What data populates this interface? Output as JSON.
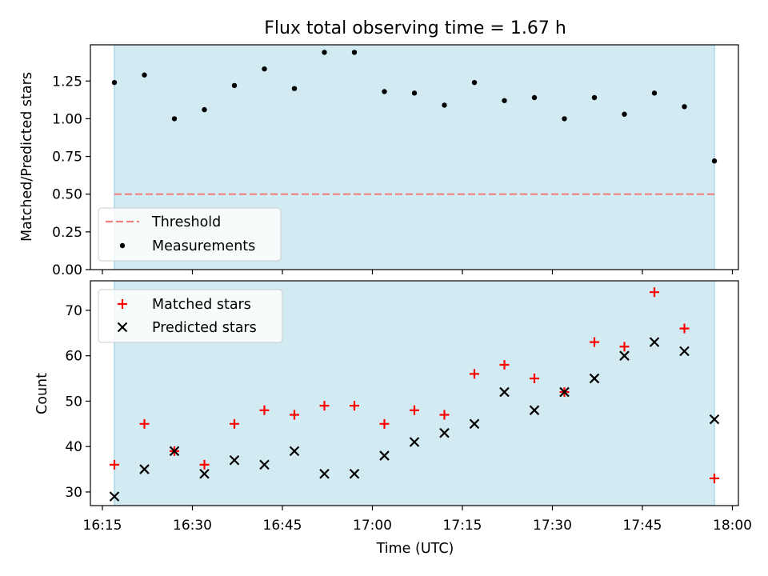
{
  "figure_title": "Flux total observing time = 1.67 h",
  "colors": {
    "span_fill": "#add8e6",
    "threshold": "#f08080",
    "measurement": "#000000",
    "matched": "#ff0000",
    "predicted": "#000000"
  },
  "chart_data": [
    {
      "type": "scatter",
      "panel": "top",
      "title": "",
      "ylabel": "Matched/Predicted stars",
      "xlabel": "",
      "xlim": [
        "16:13",
        "18:01"
      ],
      "ylim": [
        0,
        1.49
      ],
      "yticks": [
        0.0,
        0.25,
        0.5,
        0.75,
        1.0,
        1.25
      ],
      "ytick_labels": [
        "0.00",
        "0.25",
        "0.50",
        "0.75",
        "1.00",
        "1.25"
      ],
      "grid": false,
      "legend_position": "bottom-left",
      "observing_span": [
        "16:17",
        "17:57"
      ],
      "threshold": {
        "name": "Threshold",
        "value": 0.5
      },
      "series": [
        {
          "name": "Measurements",
          "x": [
            "16:17",
            "16:22",
            "16:27",
            "16:32",
            "16:37",
            "16:42",
            "16:47",
            "16:52",
            "16:57",
            "17:02",
            "17:07",
            "17:12",
            "17:17",
            "17:22",
            "17:27",
            "17:32",
            "17:37",
            "17:42",
            "17:47",
            "17:52",
            "17:57"
          ],
          "values": [
            1.24,
            1.29,
            1.0,
            1.06,
            1.22,
            1.33,
            1.2,
            1.44,
            1.44,
            1.18,
            1.17,
            1.09,
            1.24,
            1.12,
            1.14,
            1.0,
            1.14,
            1.03,
            1.17,
            1.08,
            0.72
          ]
        }
      ]
    },
    {
      "type": "scatter",
      "panel": "bottom",
      "title": "",
      "ylabel": "Count",
      "xlabel": "Time (UTC)",
      "xlim": [
        "16:13",
        "18:01"
      ],
      "ylim": [
        27,
        76.5
      ],
      "yticks": [
        30,
        40,
        50,
        60,
        70
      ],
      "ytick_labels": [
        "30",
        "40",
        "50",
        "60",
        "70"
      ],
      "xticks": [
        "16:15",
        "16:30",
        "16:45",
        "17:00",
        "17:15",
        "17:30",
        "17:45",
        "18:00"
      ],
      "xtick_labels": [
        "16:15",
        "16:30",
        "16:45",
        "17:00",
        "17:15",
        "17:30",
        "17:45",
        "18:00"
      ],
      "grid": false,
      "legend_position": "top-left",
      "observing_span": [
        "16:17",
        "17:57"
      ],
      "series": [
        {
          "name": "Matched stars",
          "marker": "plus",
          "x": [
            "16:17",
            "16:22",
            "16:27",
            "16:32",
            "16:37",
            "16:42",
            "16:47",
            "16:52",
            "16:57",
            "17:02",
            "17:07",
            "17:12",
            "17:17",
            "17:22",
            "17:27",
            "17:32",
            "17:37",
            "17:42",
            "17:47",
            "17:52",
            "17:57"
          ],
          "values": [
            36,
            45,
            39,
            36,
            45,
            48,
            47,
            49,
            49,
            45,
            48,
            47,
            56,
            58,
            55,
            52,
            63,
            62,
            74,
            66,
            33
          ]
        },
        {
          "name": "Predicted stars",
          "marker": "x",
          "x": [
            "16:17",
            "16:22",
            "16:27",
            "16:32",
            "16:37",
            "16:42",
            "16:47",
            "16:52",
            "16:57",
            "17:02",
            "17:07",
            "17:12",
            "17:17",
            "17:22",
            "17:27",
            "17:32",
            "17:37",
            "17:42",
            "17:47",
            "17:52",
            "17:57"
          ],
          "values": [
            29,
            35,
            39,
            34,
            37,
            36,
            39,
            34,
            34,
            38,
            41,
            43,
            45,
            52,
            48,
            52,
            55,
            60,
            63,
            61,
            46
          ]
        }
      ]
    }
  ]
}
